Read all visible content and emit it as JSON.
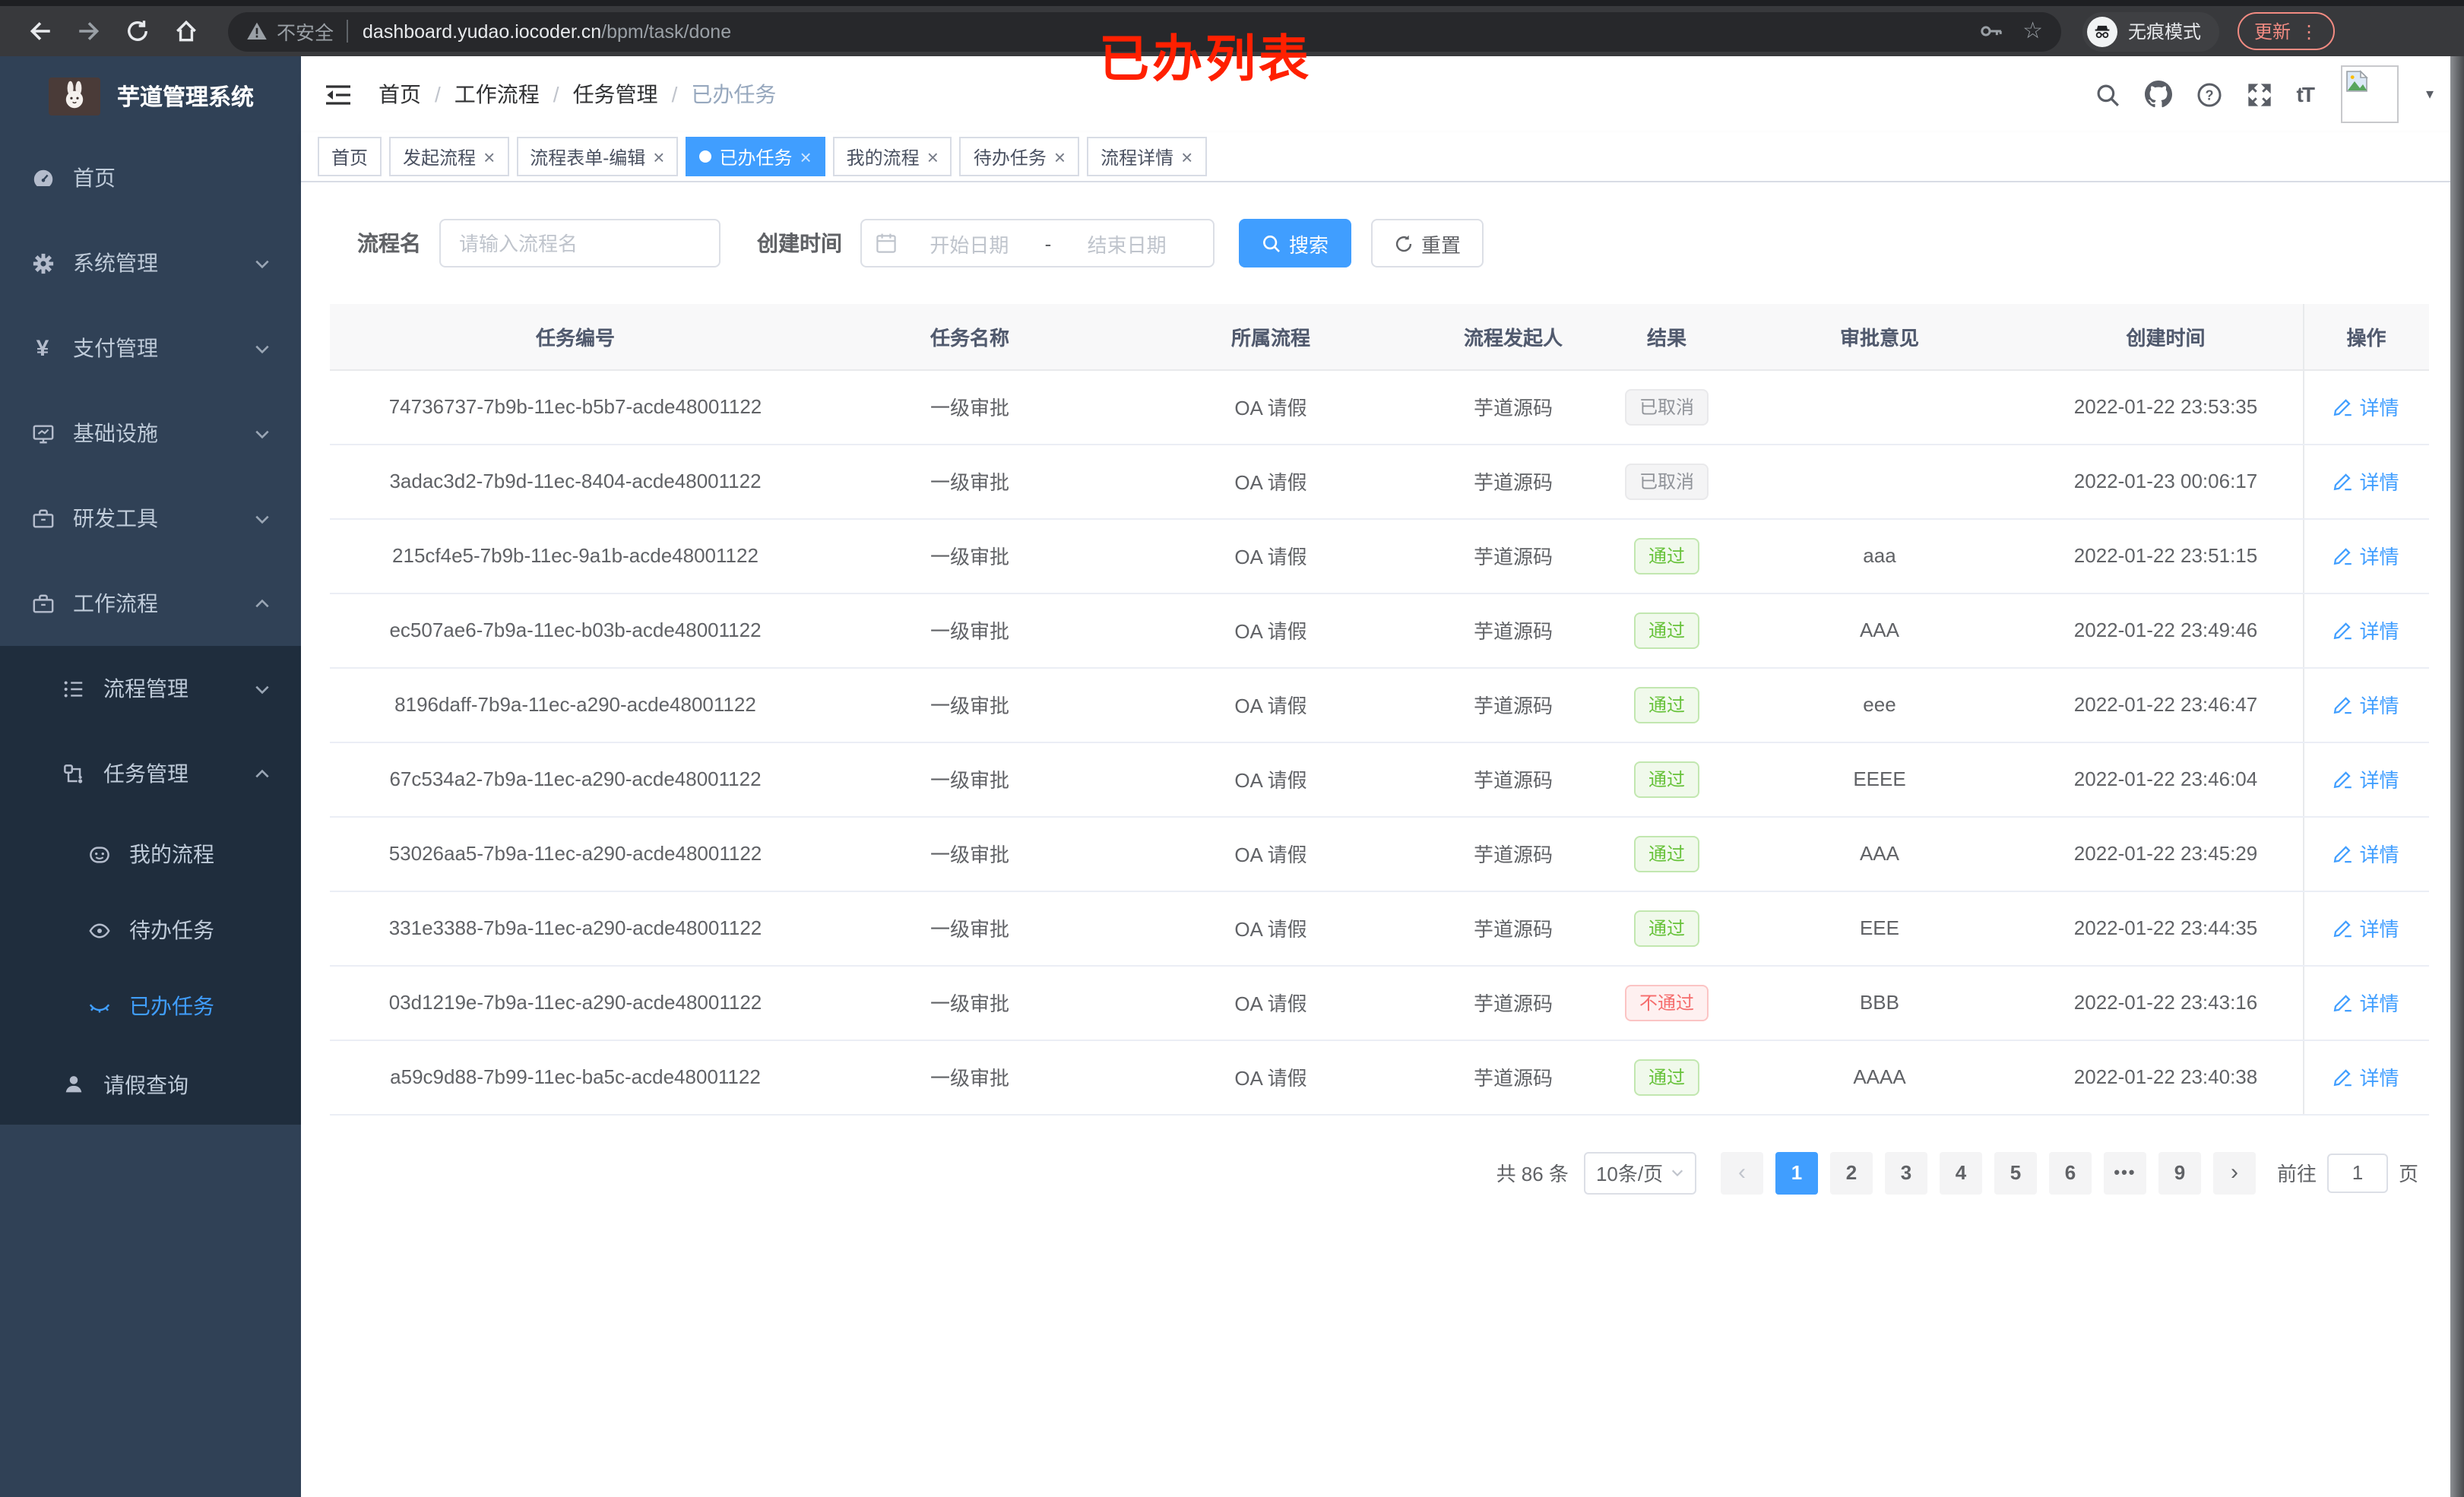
{
  "browser": {
    "security_label": "不安全",
    "url_host": "dashboard.yudao.iocoder.cn",
    "url_path": "/bpm/task/done",
    "incognito_label": "无痕模式",
    "update_label": "更新"
  },
  "annotation": {
    "text": "已办列表",
    "color": "#ff2000"
  },
  "ui": {
    "slash": "/",
    "caret": "▾",
    "menu_dots": "⋮",
    "close": "×",
    "ellipsis": "•••",
    "prev": "‹",
    "next": "›",
    "select_caret": "∨",
    "font_size_icon": "tT",
    "yen_icon": "¥",
    "warn_mark": "!"
  },
  "sidebar": {
    "title": "芋道管理系统",
    "items": [
      {
        "label": "首页"
      },
      {
        "label": "系统管理"
      },
      {
        "label": "支付管理"
      },
      {
        "label": "基础设施"
      },
      {
        "label": "研发工具"
      },
      {
        "label": "工作流程"
      }
    ],
    "workflow_children": [
      {
        "label": "流程管理"
      },
      {
        "label": "任务管理"
      },
      {
        "label": "我的流程"
      },
      {
        "label": "待办任务"
      },
      {
        "label": "已办任务",
        "active": true
      },
      {
        "label": "请假查询"
      }
    ]
  },
  "topbar": {
    "breadcrumb": [
      "首页",
      "工作流程",
      "任务管理",
      "已办任务"
    ]
  },
  "tabs": [
    {
      "label": "首页",
      "closable": false
    },
    {
      "label": "发起流程",
      "closable": true
    },
    {
      "label": "流程表单-编辑",
      "closable": true
    },
    {
      "label": "已办任务",
      "closable": true,
      "active": true
    },
    {
      "label": "我的流程",
      "closable": true
    },
    {
      "label": "待办任务",
      "closable": true
    },
    {
      "label": "流程详情",
      "closable": true
    }
  ],
  "filters": {
    "name_label": "流程名",
    "name_placeholder": "请输入流程名",
    "time_label": "创建时间",
    "start_placeholder": "开始日期",
    "range_separator": "-",
    "end_placeholder": "结束日期",
    "search_label": "搜索",
    "reset_label": "重置"
  },
  "table": {
    "headers": [
      "任务编号",
      "任务名称",
      "所属流程",
      "流程发起人",
      "结果",
      "审批意见",
      "创建时间",
      "操作"
    ],
    "action_label": "详情",
    "rows": [
      {
        "id": "74736737-7b9b-11ec-b5b7-acde48001122",
        "name": "一级审批",
        "process": "OA 请假",
        "starter": "芋道源码",
        "result": "已取消",
        "result_type": "info",
        "comment": "",
        "created": "2022-01-22 23:53:35",
        "action": "详情"
      },
      {
        "id": "3adac3d2-7b9d-11ec-8404-acde48001122",
        "name": "一级审批",
        "process": "OA 请假",
        "starter": "芋道源码",
        "result": "已取消",
        "result_type": "info",
        "comment": "",
        "created": "2022-01-23 00:06:17",
        "action": "详情"
      },
      {
        "id": "215cf4e5-7b9b-11ec-9a1b-acde48001122",
        "name": "一级审批",
        "process": "OA 请假",
        "starter": "芋道源码",
        "result": "通过",
        "result_type": "success",
        "comment": "aaa",
        "created": "2022-01-22 23:51:15",
        "action": "详情"
      },
      {
        "id": "ec507ae6-7b9a-11ec-b03b-acde48001122",
        "name": "一级审批",
        "process": "OA 请假",
        "starter": "芋道源码",
        "result": "通过",
        "result_type": "success",
        "comment": "AAA",
        "created": "2022-01-22 23:49:46",
        "action": "详情"
      },
      {
        "id": "8196daff-7b9a-11ec-a290-acde48001122",
        "name": "一级审批",
        "process": "OA 请假",
        "starter": "芋道源码",
        "result": "通过",
        "result_type": "success",
        "comment": "eee",
        "created": "2022-01-22 23:46:47",
        "action": "详情"
      },
      {
        "id": "67c534a2-7b9a-11ec-a290-acde48001122",
        "name": "一级审批",
        "process": "OA 请假",
        "starter": "芋道源码",
        "result": "通过",
        "result_type": "success",
        "comment": "EEEE",
        "created": "2022-01-22 23:46:04",
        "action": "详情"
      },
      {
        "id": "53026aa5-7b9a-11ec-a290-acde48001122",
        "name": "一级审批",
        "process": "OA 请假",
        "starter": "芋道源码",
        "result": "通过",
        "result_type": "success",
        "comment": "AAA",
        "created": "2022-01-22 23:45:29",
        "action": "详情"
      },
      {
        "id": "331e3388-7b9a-11ec-a290-acde48001122",
        "name": "一级审批",
        "process": "OA 请假",
        "starter": "芋道源码",
        "result": "通过",
        "result_type": "success",
        "comment": "EEE",
        "created": "2022-01-22 23:44:35",
        "action": "详情"
      },
      {
        "id": "03d1219e-7b9a-11ec-a290-acde48001122",
        "name": "一级审批",
        "process": "OA 请假",
        "starter": "芋道源码",
        "result": "不通过",
        "result_type": "danger",
        "comment": "BBB",
        "created": "2022-01-22 23:43:16",
        "action": "详情"
      },
      {
        "id": "a59c9d88-7b99-11ec-ba5c-acde48001122",
        "name": "一级审批",
        "process": "OA 请假",
        "starter": "芋道源码",
        "result": "通过",
        "result_type": "success",
        "comment": "AAAA",
        "created": "2022-01-22 23:40:38",
        "action": "详情"
      }
    ]
  },
  "pagination": {
    "total_label": "共 86 条",
    "page_size_label": "10条/页",
    "pages": [
      {
        "label": "1",
        "active": true
      },
      {
        "label": "2",
        "active": false
      },
      {
        "label": "3",
        "active": false
      },
      {
        "label": "4",
        "active": false
      },
      {
        "label": "5",
        "active": false
      },
      {
        "label": "6",
        "active": false
      },
      {
        "label": "•••",
        "active": false
      },
      {
        "label": "9",
        "active": false
      }
    ],
    "goto_label": "前往",
    "goto_value": "1",
    "page_unit": "页"
  }
}
